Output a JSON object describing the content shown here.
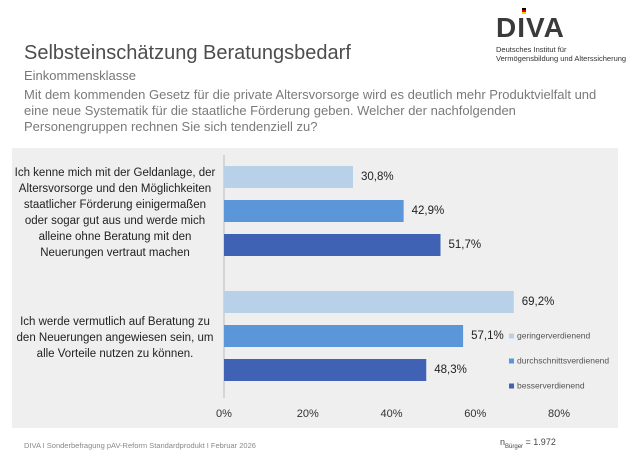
{
  "chart_data": {
    "type": "bar",
    "orientation": "horizontal",
    "title": "Selbsteinschätzung Beratungsbedarf",
    "subtitle": "Einkommensklasse",
    "question": "Mit dem kommenden Gesetz für die private Altersvorsorge wird es deutlich mehr Produktvielfalt und eine neue Systematik für die staatliche Förderung geben. Welcher der nachfolgenden Personengruppen rechnen Sie sich tendenziell zu?",
    "categories": [
      "Ich kenne mich mit der Geldanlage, der Altersvorsorge und den Möglichkeiten staatlicher Förderung einigermaßen oder sogar gut aus und werde mich alleine ohne Beratung mit den Neuerungen vertraut machen",
      "Ich werde vermutlich auf Beratung zu den Neuerungen angewiesen sein, um alle Vorteile nutzen zu können."
    ],
    "series": [
      {
        "name": "geringerverdienend",
        "color": "#b9d0e9",
        "values": [
          30.8,
          69.2
        ],
        "value_labels": [
          "30,8%",
          "69,2%"
        ]
      },
      {
        "name": "durchschnittsverdienend",
        "color": "#5b97d8",
        "values": [
          42.9,
          57.1
        ],
        "value_labels": [
          "42,9%",
          "57,1%"
        ]
      },
      {
        "name": "besserverdienend",
        "color": "#3f62b5",
        "values": [
          51.7,
          48.3
        ],
        "value_labels": [
          "51,7%",
          "48,3%"
        ]
      }
    ],
    "xlim": [
      0,
      80
    ],
    "xticks": [
      {
        "value": 0,
        "label": "0%"
      },
      {
        "value": 20,
        "label": "20%"
      },
      {
        "value": 40,
        "label": "40%"
      },
      {
        "value": 60,
        "label": "60%"
      },
      {
        "value": 80,
        "label": "80%"
      }
    ],
    "grid": false,
    "legend": "right"
  },
  "footer": "DIVA I Sonderbefragung pAV-Reform Standardprodukt I Februar 2026",
  "sample_size": {
    "symbol": "n",
    "subscript": "Bürger",
    "text": "= 1.972"
  },
  "logo": {
    "name": "DIVA",
    "lines": [
      "Deutsches Institut für",
      "Vermögensbildung und Alterssicherung"
    ]
  }
}
